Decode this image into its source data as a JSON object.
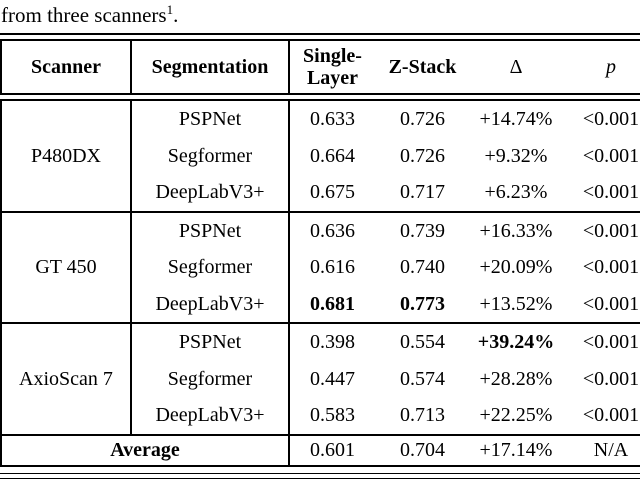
{
  "caption": {
    "text": "from three scanners",
    "superscript": "1",
    "period": "."
  },
  "colors": {
    "text": "#000000",
    "background": "#ffffff",
    "rule": "#000000"
  },
  "table": {
    "headers": {
      "scanner": "Scanner",
      "segmentation": "Segmentation",
      "single_layer_line1": "Single-",
      "single_layer_line2": "Layer",
      "z_stack": "Z-Stack",
      "delta": "Δ",
      "p": "p"
    },
    "groups": [
      {
        "scanner": "P480DX",
        "rows": [
          {
            "segmentation": "PSPNet",
            "single_layer": "0.633",
            "z_stack": "0.726",
            "delta": "+14.74%",
            "p": "<0.001"
          },
          {
            "segmentation": "Segformer",
            "single_layer": "0.664",
            "z_stack": "0.726",
            "delta": "+9.32%",
            "p": "<0.001"
          },
          {
            "segmentation": "DeepLabV3+",
            "single_layer": "0.675",
            "z_stack": "0.717",
            "delta": "+6.23%",
            "p": "<0.001"
          }
        ]
      },
      {
        "scanner": "GT 450",
        "rows": [
          {
            "segmentation": "PSPNet",
            "single_layer": "0.636",
            "z_stack": "0.739",
            "delta": "+16.33%",
            "p": "<0.001"
          },
          {
            "segmentation": "Segformer",
            "single_layer": "0.616",
            "z_stack": "0.740",
            "delta": "+20.09%",
            "p": "<0.001"
          },
          {
            "segmentation": "DeepLabV3+",
            "single_layer": "0.681",
            "z_stack": "0.773",
            "delta": "+13.52%",
            "p": "<0.001"
          }
        ]
      },
      {
        "scanner": "AxioScan 7",
        "rows": [
          {
            "segmentation": "PSPNet",
            "single_layer": "0.398",
            "z_stack": "0.554",
            "delta": "+39.24%",
            "p": "<0.001"
          },
          {
            "segmentation": "Segformer",
            "single_layer": "0.447",
            "z_stack": "0.574",
            "delta": "+28.28%",
            "p": "<0.001"
          },
          {
            "segmentation": "DeepLabV3+",
            "single_layer": "0.583",
            "z_stack": "0.713",
            "delta": "+22.25%",
            "p": "<0.001"
          }
        ]
      }
    ],
    "average": {
      "label": "Average",
      "single_layer": "0.601",
      "z_stack": "0.704",
      "delta": "+17.14%",
      "p": "N/A"
    }
  }
}
